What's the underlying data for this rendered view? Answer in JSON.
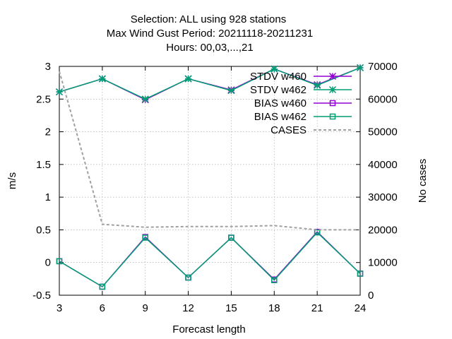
{
  "chart_data": {
    "type": "line",
    "title": [
      "Selection: ALL using   928 stations",
      "Max Wind Gust   Period: 20211118-20211231",
      "Hours:  00,03,...,21"
    ],
    "xlabel": "Forecast length",
    "ylabel": "m/s",
    "y2label": "No cases",
    "x": [
      3,
      6,
      9,
      12,
      15,
      18,
      21,
      24
    ],
    "xlim": [
      3,
      24
    ],
    "ylim": [
      -0.5,
      3
    ],
    "y2lim": [
      0,
      70000
    ],
    "xticks": [
      "3",
      "6",
      "9",
      "12",
      "15",
      "18",
      "21",
      "24"
    ],
    "yticks": [
      "-0.5",
      "0",
      "0.5",
      "1",
      "1.5",
      "2",
      "2.5",
      "3"
    ],
    "y2ticks": [
      "0",
      "10000",
      "20000",
      "30000",
      "40000",
      "50000",
      "60000",
      "70000"
    ],
    "grid": true,
    "legend_position": "top-right",
    "series": [
      {
        "name": "STDV w460",
        "axis": "y",
        "color": "#9400d3",
        "marker": "star",
        "dash": false,
        "values": [
          2.61,
          2.81,
          2.49,
          2.81,
          2.64,
          2.96,
          2.72,
          2.98
        ]
      },
      {
        "name": "STDV w462",
        "axis": "y",
        "color": "#009e73",
        "marker": "star",
        "dash": false,
        "values": [
          2.61,
          2.81,
          2.5,
          2.81,
          2.63,
          2.96,
          2.71,
          2.98
        ]
      },
      {
        "name": "BIAS w460",
        "axis": "y",
        "color": "#9400d3",
        "marker": "square",
        "dash": false,
        "values": [
          0.02,
          -0.37,
          0.39,
          -0.23,
          0.38,
          -0.26,
          0.47,
          -0.17
        ]
      },
      {
        "name": "BIAS w462",
        "axis": "y",
        "color": "#009e73",
        "marker": "square",
        "dash": false,
        "values": [
          0.02,
          -0.37,
          0.38,
          -0.23,
          0.38,
          -0.27,
          0.46,
          -0.17
        ]
      },
      {
        "name": "CASES",
        "axis": "y2",
        "color": "#a0a0a0",
        "marker": "none",
        "dash": true,
        "values": [
          68500,
          21700,
          20800,
          21000,
          21000,
          21300,
          20000,
          20000
        ]
      }
    ]
  }
}
